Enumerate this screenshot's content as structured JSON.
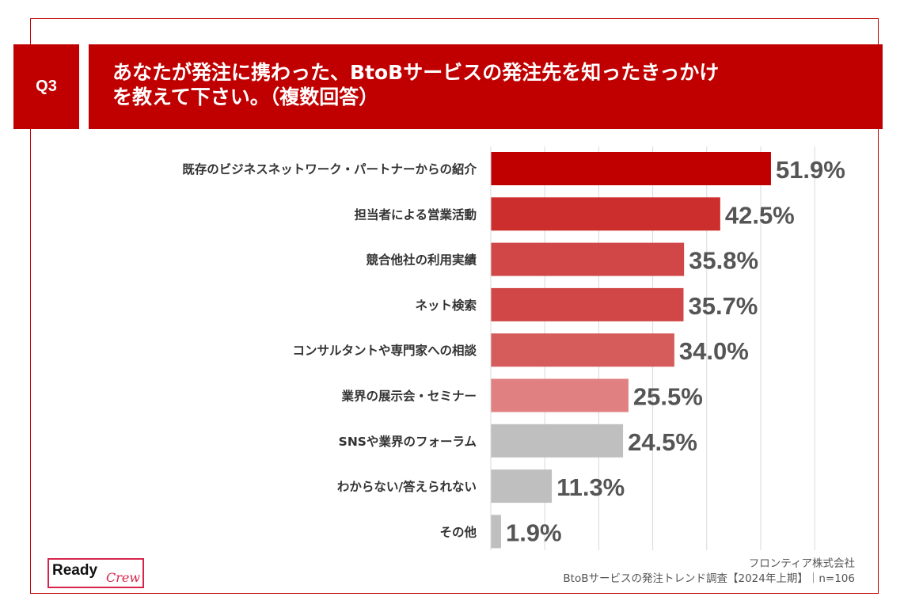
{
  "question": {
    "number": "Q3",
    "title_line1": "あなたが発注に携わった、BtoBサービスの発注先を知ったきっかけ",
    "title_line2": "を教えて下さい。（複数回答）"
  },
  "chart_data": {
    "type": "bar",
    "orientation": "horizontal",
    "categories": [
      "既存のビジネスネットワーク・パートナーからの紹介",
      "担当者による営業活動",
      "競合他社の利用実績",
      "ネット検索",
      "コンサルタントや専門家への相談",
      "業界の展示会・セミナー",
      "SNSや業界のフォーラム",
      "わからない/答えられない",
      "その他"
    ],
    "values": [
      51.9,
      42.5,
      35.8,
      35.7,
      34.0,
      25.5,
      24.5,
      11.3,
      1.9
    ],
    "value_labels": [
      "51.9%",
      "42.5%",
      "35.8%",
      "35.7%",
      "34.0%",
      "25.5%",
      "24.5%",
      "11.3%",
      "1.9%"
    ],
    "bar_colors": [
      "#c00000",
      "#cc2e2e",
      "#d14747",
      "#d14747",
      "#d65c5c",
      "#e08080",
      "#bfbfbf",
      "#bfbfbf",
      "#bfbfbf"
    ],
    "xlim": [
      0,
      60
    ],
    "grid": true,
    "value_label_color": "#555555"
  },
  "footer": {
    "source_line1": "フロンティア株式会社",
    "source_line2": "BtoBサービスの発注トレンド調査【2024年上期】｜n=106"
  },
  "logo": {
    "main": "Ready",
    "script": "Crew"
  },
  "colors": {
    "accent": "#c00000",
    "logo_accent": "#d6254a"
  }
}
